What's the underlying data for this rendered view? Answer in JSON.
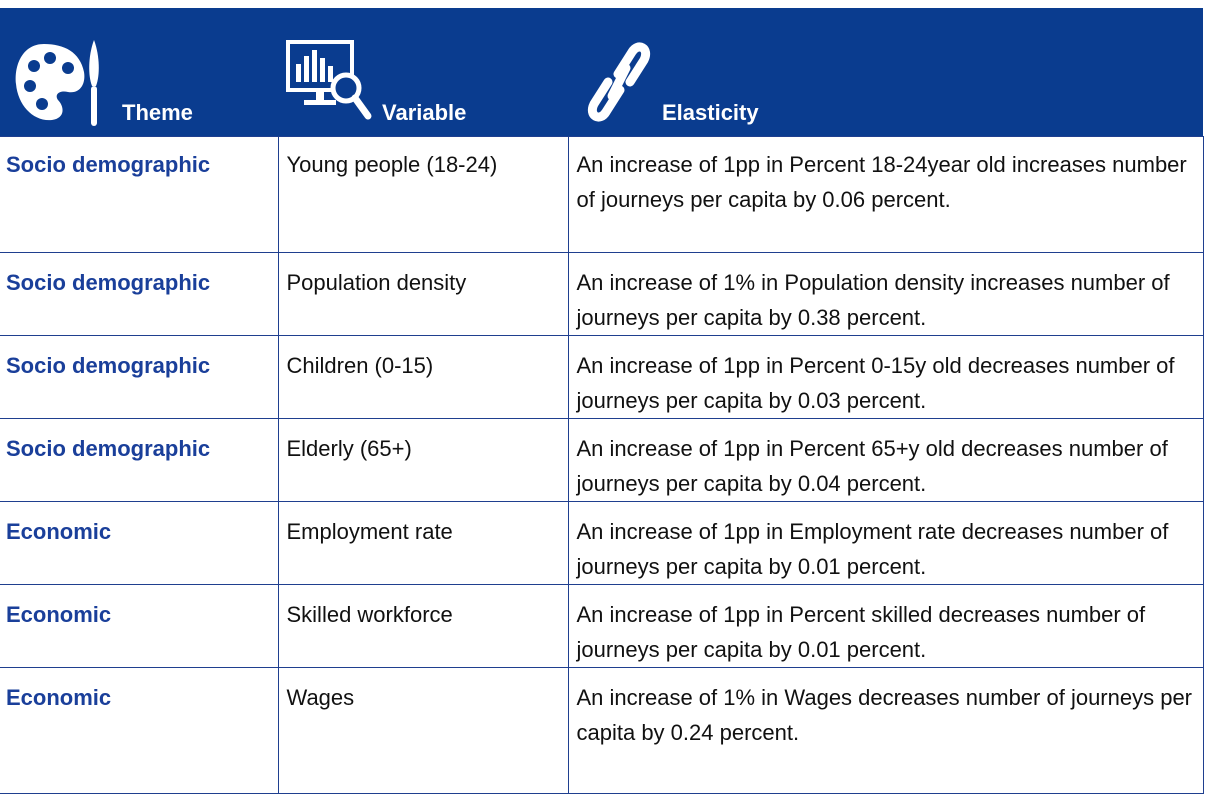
{
  "table": {
    "columns": [
      "Theme",
      "Variable",
      "Elasticity"
    ],
    "rows": [
      [
        "Socio demographic",
        "Young people (18-24)",
        "An increase of 1pp in Percent 18-24year old increases number of journeys per capita by 0.06 percent."
      ],
      [
        "Socio demographic",
        "Population density",
        "An increase of 1% in Population density increases number of journeys per capita by 0.38 percent."
      ],
      [
        "Socio demographic",
        "Children (0-15)",
        "An increase of 1pp in Percent 0-15y old decreases number of journeys per capita by 0.03 percent."
      ],
      [
        "Socio demographic",
        "Elderly (65+)",
        "An increase of 1pp in Percent 65+y old decreases number of journeys per capita by 0.04 percent."
      ],
      [
        "Economic",
        "Employment rate",
        "An increase of 1pp in Employment rate decreases number of journeys per capita by 0.01 percent."
      ],
      [
        "Economic",
        "Skilled workforce",
        "An increase of 1pp in Percent skilled decreases number of journeys per capita by 0.01 percent."
      ],
      [
        "Economic",
        "Wages",
        "An increase of 1% in Wages decreases number of journeys per capita by 0.24 percent."
      ]
    ]
  }
}
